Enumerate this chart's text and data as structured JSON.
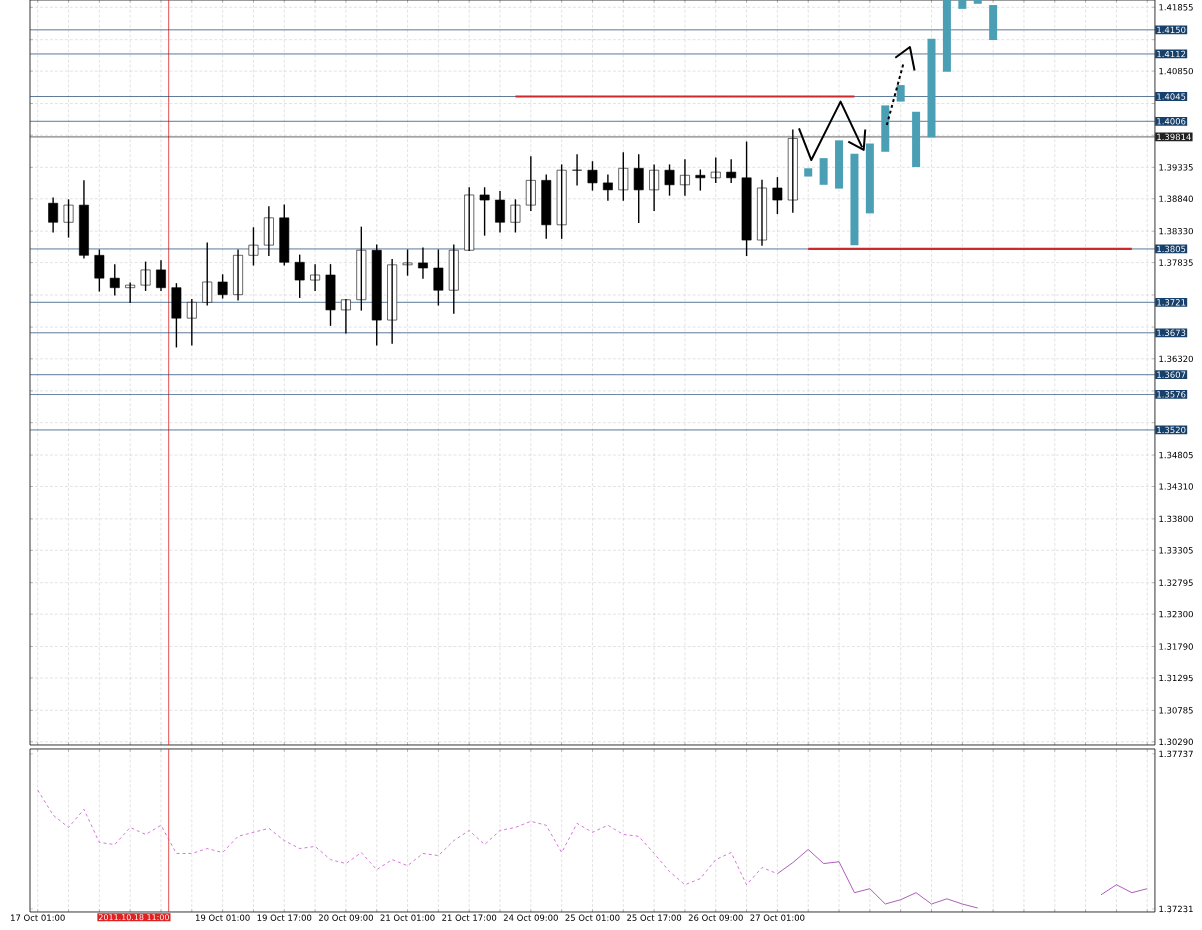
{
  "chart_data": [
    {
      "type": "candlestick",
      "ohlc": [
        null,
        [
          1.3877,
          1.3885,
          1.3832,
          1.3847
        ],
        [
          1.3847,
          1.3882,
          1.3824,
          1.3874
        ],
        [
          1.3874,
          1.3912,
          1.3791,
          1.3795
        ],
        [
          1.3795,
          1.3803,
          1.3739,
          1.3759
        ],
        [
          1.3759,
          1.378,
          1.3733,
          1.3744
        ],
        [
          1.3744,
          1.3751,
          1.3721,
          1.3748
        ],
        [
          1.3748,
          1.3784,
          1.374,
          1.3772
        ],
        [
          1.3772,
          1.3786,
          1.374,
          1.3744
        ],
        [
          1.3744,
          1.375,
          1.3651,
          1.3696
        ],
        [
          1.3696,
          1.3725,
          1.3654,
          1.3721
        ],
        [
          1.3721,
          1.3814,
          1.3717,
          1.3753
        ],
        [
          1.3753,
          1.3764,
          1.3728,
          1.3733
        ],
        [
          1.3733,
          1.3803,
          1.3725,
          1.3795
        ],
        [
          1.3795,
          1.3838,
          1.378,
          1.3811
        ],
        [
          1.3811,
          1.3871,
          1.3795,
          1.3854
        ],
        [
          1.3854,
          1.3874,
          1.378,
          1.3784
        ],
        [
          1.3784,
          1.3795,
          1.3729,
          1.3756
        ],
        [
          1.3756,
          1.378,
          1.374,
          1.3764
        ],
        [
          1.3764,
          1.378,
          1.3685,
          1.3709
        ],
        [
          1.3709,
          1.3725,
          1.3673,
          1.3725
        ],
        [
          1.3725,
          1.3839,
          1.3709,
          1.3803
        ],
        [
          1.3803,
          1.3811,
          1.3654,
          1.3693
        ],
        [
          1.3693,
          1.3788,
          1.3657,
          1.378
        ],
        [
          1.378,
          1.3803,
          1.3764,
          1.3783
        ],
        [
          1.3783,
          1.3806,
          1.3759,
          1.3775
        ],
        [
          1.3775,
          1.3803,
          1.3717,
          1.374
        ],
        [
          1.374,
          1.3811,
          1.3704,
          1.3803
        ],
        [
          1.3803,
          1.3901,
          1.3803,
          1.389
        ],
        [
          1.389,
          1.3901,
          1.3827,
          1.3882
        ],
        [
          1.3882,
          1.3895,
          1.3832,
          1.3847
        ],
        [
          1.3847,
          1.3882,
          1.3832,
          1.3874
        ],
        [
          1.3874,
          1.395,
          1.3866,
          1.3913
        ],
        [
          1.3913,
          1.3921,
          1.3822,
          1.3843
        ],
        [
          1.3843,
          1.3937,
          1.3822,
          1.3929
        ],
        [
          1.3929,
          1.3953,
          1.3906,
          1.3929
        ],
        [
          1.3929,
          1.3942,
          1.3898,
          1.3909
        ],
        [
          1.3909,
          1.3921,
          1.3882,
          1.3898
        ],
        [
          1.3898,
          1.3956,
          1.3882,
          1.3932
        ],
        [
          1.3932,
          1.3953,
          1.3847,
          1.3898
        ],
        [
          1.3898,
          1.3937,
          1.3866,
          1.3929
        ],
        [
          1.3929,
          1.3937,
          1.389,
          1.3906
        ],
        [
          1.3906,
          1.3945,
          1.389,
          1.3921
        ],
        [
          1.3921,
          1.3929,
          1.3898,
          1.3917
        ],
        [
          1.3917,
          1.3948,
          1.391,
          1.3926
        ],
        [
          1.3926,
          1.3945,
          1.391,
          1.3917
        ],
        [
          1.3917,
          1.3973,
          1.3795,
          1.3819
        ],
        [
          1.3819,
          1.3913,
          1.3811,
          1.3901
        ],
        [
          1.3901,
          1.3917,
          1.3861,
          1.3882
        ],
        [
          1.3882,
          1.3992,
          1.3863,
          1.3979
        ],
        null,
        null,
        null,
        null,
        null,
        null,
        null,
        null,
        null,
        null,
        null,
        null,
        null,
        null,
        null,
        null,
        null,
        null,
        null,
        null,
        null,
        null,
        null
      ],
      "series": [
        {
          "type": "bar",
          "color": "#4a9fb5",
          "base": [
            null,
            null,
            null,
            null,
            null,
            null,
            null,
            null,
            null,
            null,
            null,
            null,
            null,
            null,
            null,
            null,
            null,
            null,
            null,
            null,
            null,
            null,
            null,
            null,
            null,
            null,
            null,
            null,
            null,
            null,
            null,
            null,
            null,
            null,
            null,
            null,
            null,
            null,
            null,
            null,
            null,
            null,
            null,
            null,
            null,
            null,
            null,
            null,
            null,
            null,
            1.3919,
            1.3906,
            1.39,
            1.3811,
            1.3861,
            1.3958,
            1.4037,
            1.3934,
            1.3981,
            1.4084,
            1.4183,
            1.4191,
            1.4134,
            null,
            null,
            null,
            null,
            null,
            null,
            null,
            null,
            null,
            null
          ],
          "values": [
            null,
            null,
            null,
            null,
            null,
            null,
            null,
            null,
            null,
            null,
            null,
            null,
            null,
            null,
            null,
            null,
            null,
            null,
            null,
            null,
            null,
            null,
            null,
            null,
            null,
            null,
            null,
            null,
            null,
            null,
            null,
            null,
            null,
            null,
            null,
            null,
            null,
            null,
            null,
            null,
            null,
            null,
            null,
            null,
            null,
            null,
            null,
            null,
            null,
            null,
            0.0013,
            0.0042,
            0.0076,
            0.0144,
            0.011,
            0.0073,
            0.0026,
            0.0087,
            0.0155,
            0.0113,
            0.0014,
            0.0006,
            0.0055,
            null,
            null,
            null,
            null,
            null,
            null,
            null,
            null,
            null,
            null
          ]
        },
        {
          "type": "line",
          "color": "#cc2a2a",
          "values": [
            null,
            null,
            null,
            null,
            null,
            null,
            null,
            null,
            null,
            null,
            null,
            null,
            null,
            null,
            null,
            null,
            null,
            null,
            null,
            null,
            null,
            null,
            null,
            null,
            null,
            null,
            null,
            null,
            null,
            null,
            null,
            1.4045,
            1.4045,
            1.4045,
            1.4045,
            1.4045,
            1.4045,
            1.4045,
            1.4045,
            1.4045,
            1.4045,
            1.4045,
            1.4045,
            1.4045,
            1.4045,
            1.4045,
            1.4045,
            1.4045,
            1.4045,
            1.4045,
            1.4045,
            1.4045,
            1.4045,
            1.4045,
            null,
            null,
            null,
            null,
            null,
            null,
            null,
            null,
            null,
            null,
            null,
            null,
            null,
            null,
            null,
            null,
            null,
            null,
            null
          ]
        },
        {
          "type": "line",
          "color": "#cc2a2a",
          "values": [
            null,
            null,
            null,
            null,
            null,
            null,
            null,
            null,
            null,
            null,
            null,
            null,
            null,
            null,
            null,
            null,
            null,
            null,
            null,
            null,
            null,
            null,
            null,
            null,
            null,
            null,
            null,
            null,
            null,
            null,
            null,
            null,
            null,
            null,
            null,
            null,
            null,
            null,
            null,
            null,
            null,
            null,
            null,
            null,
            null,
            null,
            null,
            null,
            null,
            null,
            1.3805,
            1.3805,
            1.3805,
            1.3805,
            1.3805,
            1.3805,
            1.3805,
            1.3805,
            1.3805,
            1.3805,
            1.3805,
            1.3805,
            1.3805,
            1.3805,
            1.3805,
            1.3805,
            1.3805,
            1.3805,
            1.3805,
            1.3805,
            1.3805,
            1.3805,
            null
          ]
        }
      ],
      "ylim": [
        1.3024,
        1.4197
      ],
      "yticks": [
        1.41855,
        {
          "value": 1.41345,
          "label": null
        },
        {
          "value": 1.4085,
          "label": "1.40850"
        },
        {
          "value": 1.4034,
          "label": null
        },
        {
          "value": 1.3984,
          "label": null
        },
        1.39335,
        {
          "value": 1.3884,
          "label": "1.38840"
        },
        {
          "value": 1.3833,
          "label": "1.38330"
        },
        1.37835,
        {
          "value": 1.37325,
          "label": null
        },
        {
          "value": 1.3682,
          "label": null
        },
        {
          "value": 1.3632,
          "label": "1.36320"
        },
        {
          "value": 1.35815,
          "label": null
        },
        {
          "value": 1.35315,
          "label": null
        },
        1.34805,
        {
          "value": 1.3431,
          "label": "1.34310"
        },
        {
          "value": 1.338,
          "label": "1.33800"
        },
        1.33305,
        1.32795,
        {
          "value": 1.323,
          "label": "1.32300"
        },
        {
          "value": 1.3179,
          "label": "1.31790"
        },
        1.31295,
        1.30785,
        {
          "value": 1.3029,
          "label": "1.30290"
        }
      ],
      "tick_labels": "y",
      "grid": true,
      "ref_lines": [
        {
          "axis": "y",
          "value": 1.415,
          "label": "1.4150",
          "color": "#17406b"
        },
        {
          "axis": "y",
          "value": 1.4112,
          "label": "1.4112",
          "color": "#17406b"
        },
        {
          "axis": "y",
          "value": 1.4045,
          "label": "1.4045",
          "color": "#17406b"
        },
        {
          "axis": "y",
          "value": 1.4006,
          "label": "1.4006",
          "color": "#17406b"
        },
        {
          "axis": "y",
          "value": 1.39814,
          "label": "1.39814",
          "color": "#222222"
        },
        {
          "axis": "y",
          "value": 1.3805,
          "label": "1.3805",
          "color": "#17406b"
        },
        {
          "axis": "y",
          "value": 1.3721,
          "label": "1.3721",
          "color": "#17406b"
        },
        {
          "axis": "y",
          "value": 1.3673,
          "label": "1.3673",
          "color": "#17406b"
        },
        {
          "axis": "y",
          "value": 1.3607,
          "label": "1.3607",
          "color": "#17406b"
        },
        {
          "axis": "y",
          "value": 1.3576,
          "label": "1.3576",
          "color": "#17406b"
        },
        {
          "axis": "y",
          "value": 1.352,
          "label": "1.3520",
          "color": "#17406b"
        }
      ]
    },
    {
      "type": "line",
      "categories": [
        "17 Oct 01:00",
        null,
        null,
        null,
        null,
        null,
        null,
        null,
        null,
        null,
        null,
        null,
        "19 Oct 01:00",
        null,
        null,
        null,
        "19 Oct 17:00",
        null,
        null,
        null,
        "20 Oct 09:00",
        null,
        null,
        null,
        "21 Oct 01:00",
        null,
        null,
        null,
        "21 Oct 17:00",
        null,
        null,
        null,
        "24 Oct 09:00",
        null,
        null,
        null,
        "25 Oct 01:00",
        null,
        null,
        null,
        "25 Oct 17:00",
        null,
        null,
        null,
        "26 Oct 09:00",
        null,
        null,
        null,
        "27 Oct 01:00",
        null,
        null,
        null,
        null,
        null,
        null,
        null,
        null,
        null,
        null,
        null,
        null,
        null,
        null,
        null,
        null,
        null,
        null,
        null,
        null,
        null,
        null,
        null,
        null
      ],
      "series": [
        {
          "color": "#cc55cc",
          "line_style": "dashed",
          "values": [
            1.37619,
            1.37537,
            1.37497,
            1.37556,
            1.37448,
            1.37441,
            1.37497,
            1.37474,
            1.37504,
            1.37412,
            1.37412,
            1.37428,
            1.37415,
            1.37468,
            1.37481,
            1.37494,
            1.37454,
            1.37428,
            1.37435,
            1.37392,
            1.37379,
            1.37415,
            1.37359,
            1.37392,
            1.37372,
            1.37412,
            1.37405,
            1.37454,
            1.37487,
            1.37441,
            1.37487,
            1.37497,
            1.37517,
            1.37504,
            1.37415,
            1.3751,
            1.37481,
            1.37504,
            1.37474,
            1.37468,
            1.37412,
            1.37353,
            1.3731,
            1.3733,
            1.37392,
            1.37415,
            1.3731,
            1.37366,
            1.37346,
            null,
            null,
            null,
            null,
            null,
            null,
            null,
            null,
            null,
            null,
            null,
            null,
            null,
            null,
            null,
            null,
            null,
            null,
            null,
            null,
            null,
            null,
            null,
            null
          ]
        },
        {
          "color": "#9933aa",
          "values": [
            null,
            null,
            null,
            null,
            null,
            null,
            null,
            null,
            null,
            null,
            null,
            null,
            null,
            null,
            null,
            null,
            null,
            null,
            null,
            null,
            null,
            null,
            null,
            null,
            null,
            null,
            null,
            null,
            null,
            null,
            null,
            null,
            null,
            null,
            null,
            null,
            null,
            null,
            null,
            null,
            null,
            null,
            null,
            null,
            null,
            null,
            null,
            null,
            1.37346,
            1.37382,
            1.37425,
            1.37379,
            1.37385,
            1.37284,
            1.37297,
            1.37247,
            1.37261,
            1.37284,
            1.37247,
            1.37264,
            1.37247,
            1.37234,
            null,
            null,
            null,
            null,
            null,
            null,
            null,
            1.37277,
            1.3731,
            1.37284,
            1.37297
          ]
        }
      ],
      "ylim": [
        1.37221,
        1.37753
      ],
      "yticks": [
        1.37737,
        1.37231
      ],
      "grid": "x",
      "annotations": [
        "2011.10.18 11:00"
      ]
    }
  ]
}
